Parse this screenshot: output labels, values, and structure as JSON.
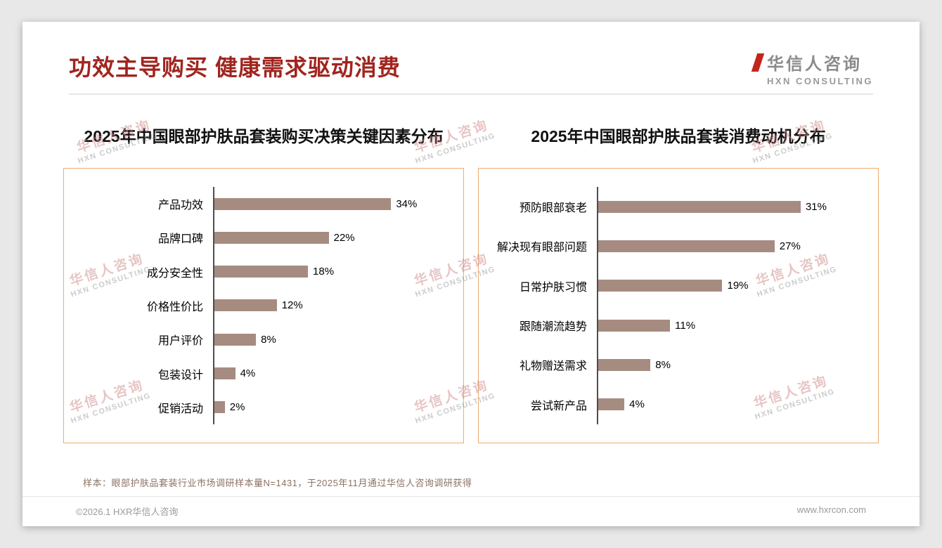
{
  "header": {
    "title": "功效主导购买 健康需求驱动消费"
  },
  "logo": {
    "name_cn": "华信人咨询",
    "name_en": "HXN CONSULTING"
  },
  "watermark": {
    "line1": "华信人咨询",
    "line2": "HXN CONSULTING"
  },
  "chart_data": [
    {
      "type": "bar",
      "orientation": "horizontal",
      "title": "2025年中国眼部护肤品套装购买决策关键因素分布",
      "categories": [
        "产品功效",
        "品牌口碑",
        "成分安全性",
        "价格性价比",
        "用户评价",
        "包装设计",
        "促销活动"
      ],
      "values": [
        34,
        22,
        18,
        12,
        8,
        4,
        2
      ],
      "value_labels": [
        "34%",
        "22%",
        "18%",
        "12%",
        "8%",
        "4%",
        "2%"
      ],
      "unit": "%",
      "xlim": [
        0,
        40
      ],
      "grid": false,
      "legend": false,
      "bar_color": "#a68b80"
    },
    {
      "type": "bar",
      "orientation": "horizontal",
      "title": "2025年中国眼部护肤品套装消费动机分布",
      "categories": [
        "预防眼部衰老",
        "解决现有眼部问题",
        "日常护肤习惯",
        "跟随潮流趋势",
        "礼物赠送需求",
        "尝试新产品"
      ],
      "values": [
        31,
        27,
        19,
        11,
        8,
        4
      ],
      "value_labels": [
        "31%",
        "27%",
        "19%",
        "11%",
        "8%",
        "4%"
      ],
      "unit": "%",
      "xlim": [
        0,
        36
      ],
      "grid": false,
      "legend": false,
      "bar_color": "#a68b80"
    }
  ],
  "footnote": "样本：眼部护肤品套装行业市场调研样本量N=1431，于2025年11月通过华信人咨询调研获得",
  "footer": {
    "copyright": "©2026.1 HXR华信人咨询",
    "website": "www.hxrcon.com"
  },
  "colors": {
    "title": "#a1251f",
    "bar": "#a68b80",
    "chart_border": "#f0aa6e",
    "logo_red": "#c2251c"
  }
}
